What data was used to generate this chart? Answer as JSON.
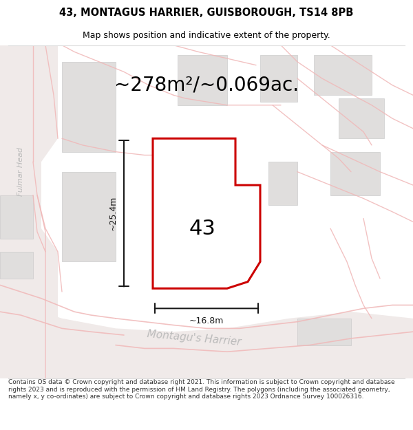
{
  "title_line1": "43, MONTAGUS HARRIER, GUISBOROUGH, TS14 8PB",
  "title_line2": "Map shows position and indicative extent of the property.",
  "area_text": "~278m²/~0.069ac.",
  "width_label": "~16.8m",
  "height_label": "~25.4m",
  "number_label": "43",
  "street_label": "Montagu's Harrier",
  "side_label": "Fulmar Head",
  "footer_text": "Contains OS data © Crown copyright and database right 2021. This information is subject to Crown copyright and database rights 2023 and is reproduced with the permission of HM Land Registry. The polygons (including the associated geometry, namely x, y co-ordinates) are subject to Crown copyright and database rights 2023 Ordnance Survey 100026316.",
  "bg_color": "#ffffff",
  "map_bg": "#f7f4f2",
  "road_fill": "#f5eded",
  "road_line": "#f0b8b8",
  "building_fill": "#e0dedd",
  "building_edge": "#cccccc",
  "property_fill": "#ffffff",
  "property_outline": "#cc0000",
  "dim_color": "#1a1a1a",
  "text_color": "#000000",
  "street_color": "#bbbbbb",
  "footer_color": "#333333",
  "title_fontsize": 10.5,
  "subtitle_fontsize": 9,
  "area_fontsize": 20,
  "dim_fontsize": 9,
  "street_fontsize": 11,
  "side_fontsize": 8,
  "num_fontsize": 22,
  "footer_fontsize": 6.5
}
